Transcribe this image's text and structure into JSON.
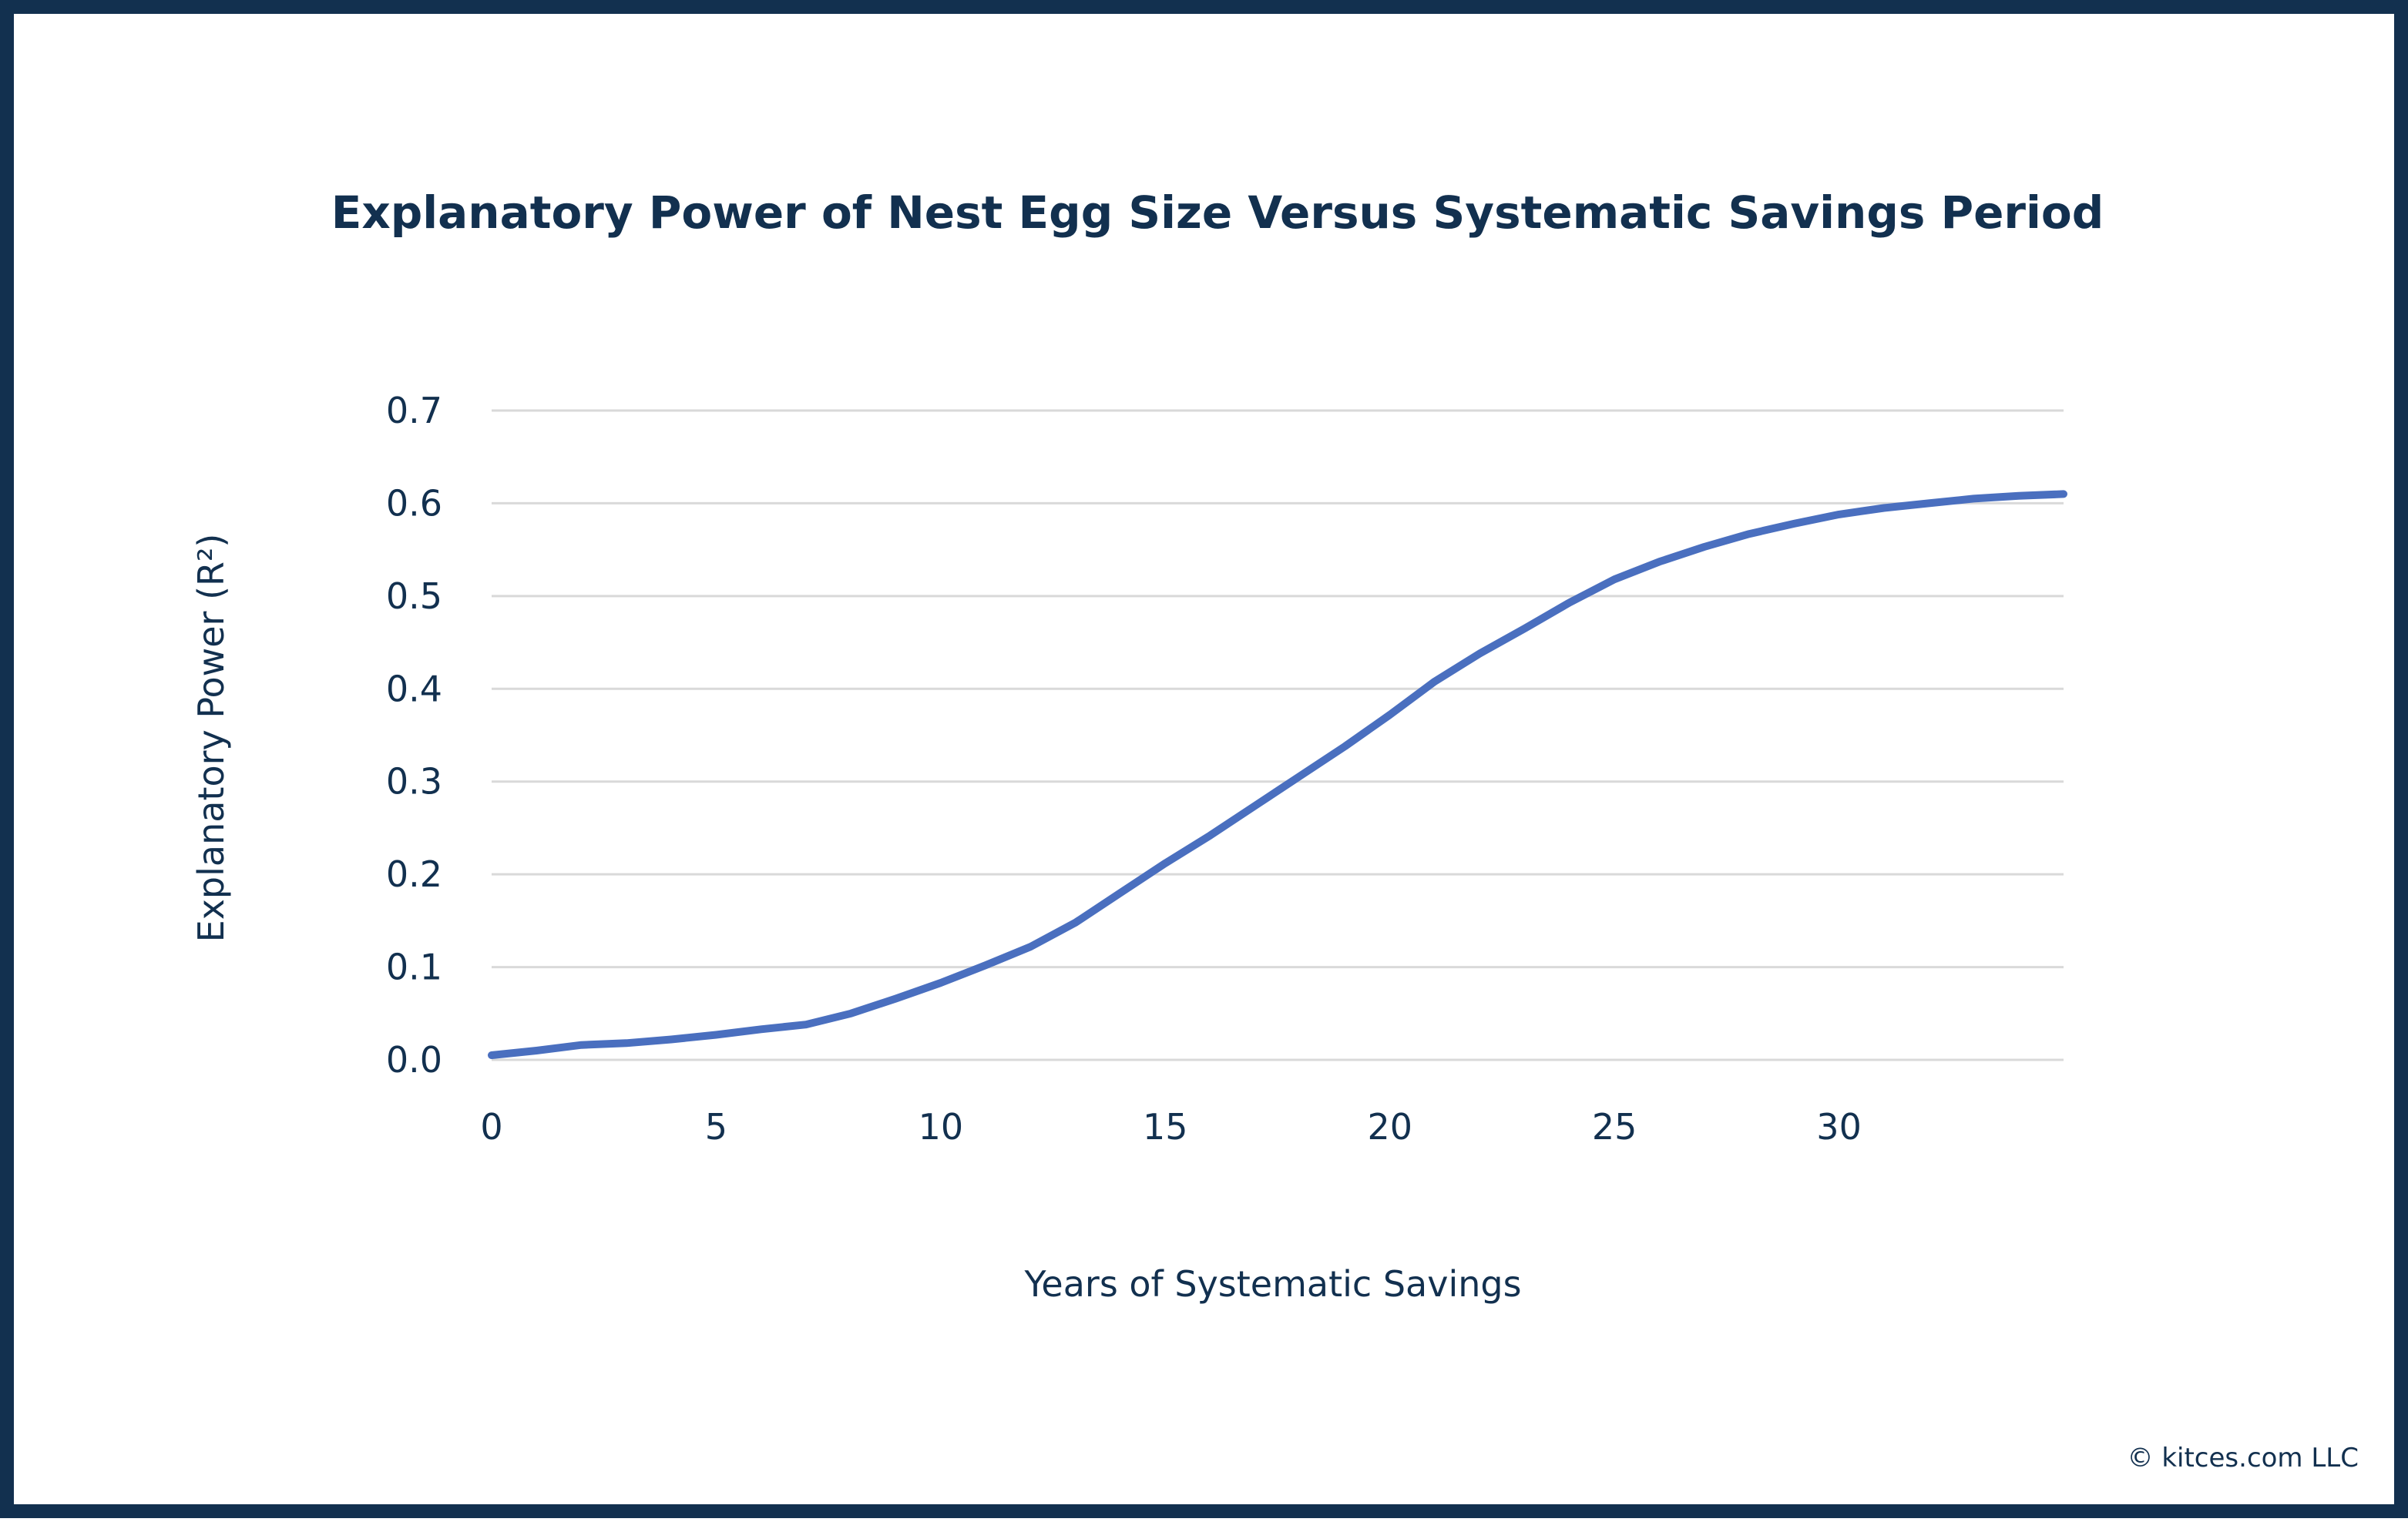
{
  "credit": "© kitces.com LLC",
  "colors": {
    "frame": "#12304f",
    "text": "#12304f",
    "line": "#4a6fbf",
    "grid": "#d9d9d9"
  },
  "chart_data": {
    "type": "line",
    "title": "Explanatory Power of Nest Egg Size Versus Systematic Savings Period",
    "xlabel": "Years of Systematic Savings",
    "ylabel": "Explanatory Power (R²)",
    "xlim": [
      0,
      35
    ],
    "ylim": [
      0,
      0.7
    ],
    "xticks": [
      0,
      5,
      10,
      15,
      20,
      25,
      30
    ],
    "xtick_labels": [
      "0",
      "5",
      "10",
      "15",
      "20",
      "25",
      "30"
    ],
    "yticks": [
      0,
      0.1,
      0.2,
      0.3,
      0.4,
      0.5,
      0.6,
      0.7
    ],
    "ytick_labels": [
      "0.0",
      "0.1",
      "0.2",
      "0.3",
      "0.4",
      "0.5",
      "0.6",
      "0.7"
    ],
    "grid": true,
    "legend": "none",
    "series": [
      {
        "x": [
          0,
          1,
          2,
          3,
          4,
          5,
          6,
          7,
          8,
          9,
          10,
          11,
          12,
          13,
          14,
          15,
          16,
          17,
          18,
          19,
          20,
          21,
          22,
          23,
          24,
          25,
          26,
          27,
          28,
          29,
          30,
          31,
          32,
          33,
          34,
          35
        ],
        "y": [
          0.005,
          0.01,
          0.016,
          0.018,
          0.022,
          0.027,
          0.033,
          0.038,
          0.05,
          0.066,
          0.083,
          0.102,
          0.122,
          0.148,
          0.18,
          0.212,
          0.242,
          0.274,
          0.306,
          0.338,
          0.372,
          0.408,
          0.438,
          0.465,
          0.493,
          0.518,
          0.537,
          0.553,
          0.567,
          0.578,
          0.588,
          0.595,
          0.6,
          0.605,
          0.608,
          0.61
        ]
      }
    ]
  }
}
